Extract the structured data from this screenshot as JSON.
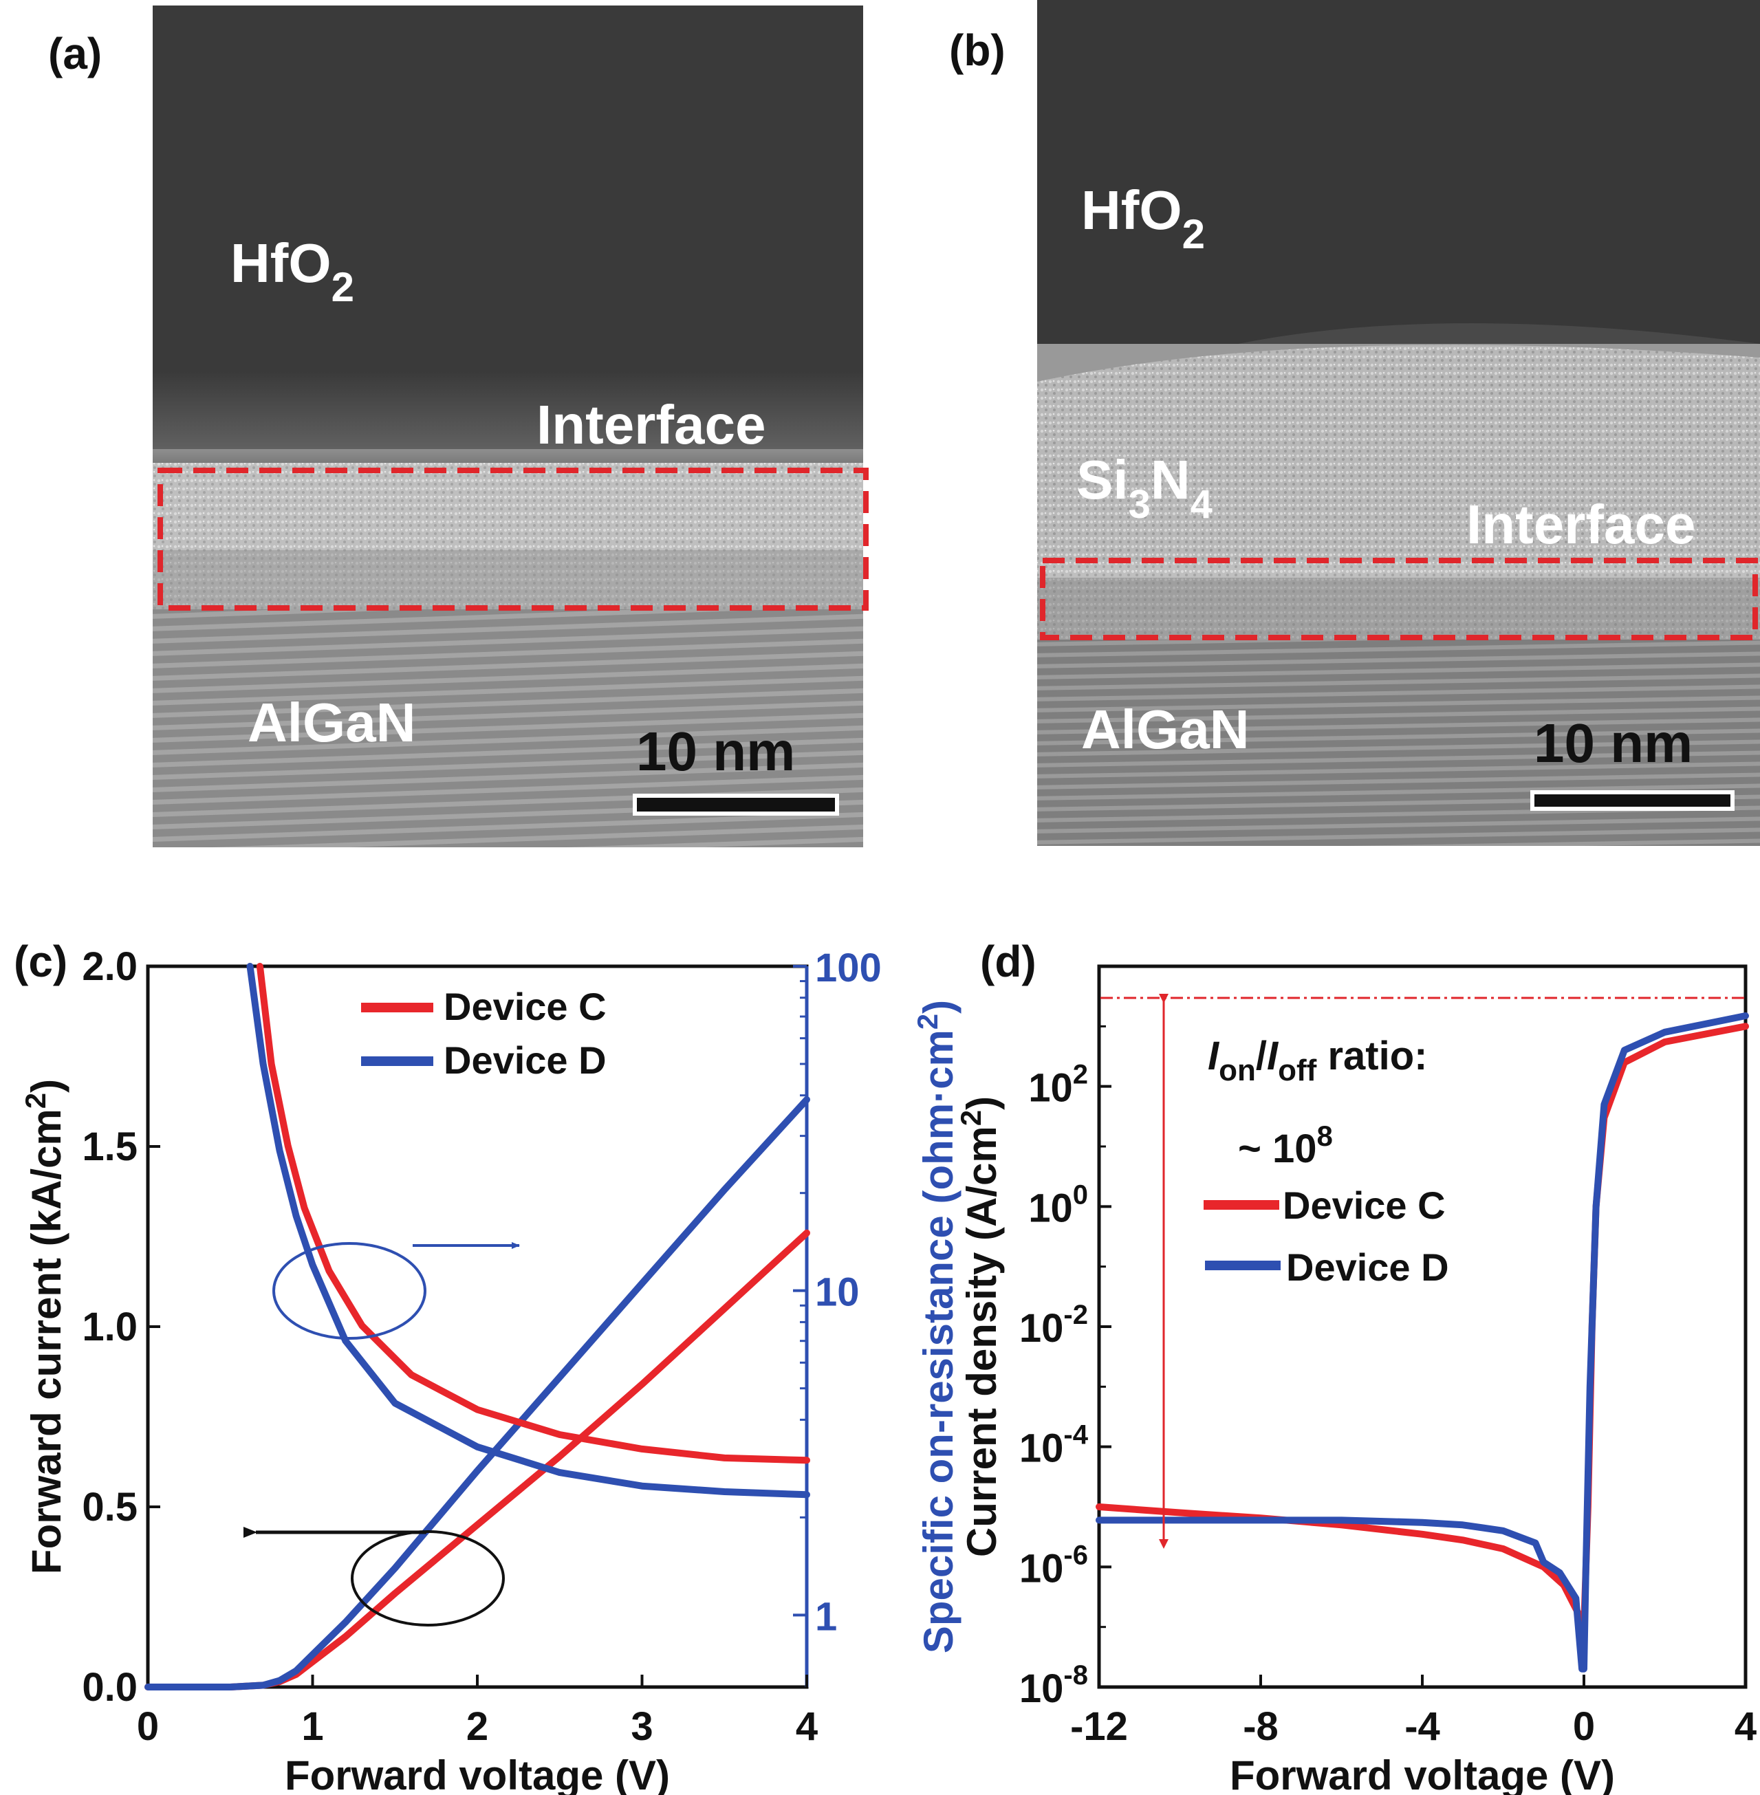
{
  "figure": {
    "panels": {
      "a": {
        "label": "(a)",
        "layers": {
          "top_base": "HfO",
          "top_sub": "2",
          "interface": "Interface",
          "bottom": "AlGaN"
        },
        "scale_bar": "10 nm"
      },
      "b": {
        "label": "(b)",
        "layers": {
          "top_base": "HfO",
          "top_sub": "2",
          "mid_si": "Si",
          "mid_3": "3",
          "mid_n": "N",
          "mid_4": "4",
          "interface": "Interface",
          "bottom": "AlGaN"
        },
        "scale_bar": "10 nm"
      },
      "c": {
        "label": "(c)"
      },
      "d": {
        "label": "(d)"
      }
    },
    "colors": {
      "red": "#e8262b",
      "blue": "#2e4fb1",
      "dashed_box": "#e0262b",
      "black": "#111111"
    }
  },
  "chart_data": [
    {
      "panel": "c",
      "type": "line",
      "xlabel": "Forward voltage (V)",
      "ylabel": "Forward current (kA/cm2)",
      "ylabel_parts": {
        "base": "Forward current (kA/cm",
        "sup": "2",
        "end": ")"
      },
      "y2label_parts": {
        "base": "Specific on-resistance (ohm·cm",
        "sup": "2",
        "end": ")"
      },
      "xlim": [
        0,
        4
      ],
      "ylim": [
        0,
        2.0
      ],
      "y2lim": [
        0.6,
        100
      ],
      "y2scale": "log",
      "x_ticks": [
        "0",
        "1",
        "2",
        "3",
        "4"
      ],
      "x_tick_values": [
        0,
        1,
        2,
        3,
        4
      ],
      "y_ticks": [
        "0.0",
        "0.5",
        "1.0",
        "1.5",
        "2.0"
      ],
      "y_tick_values": [
        0,
        0.5,
        1.0,
        1.5,
        2.0
      ],
      "y2_ticks": [
        "1",
        "10",
        "100"
      ],
      "y2_tick_values": [
        1,
        10,
        100
      ],
      "legend": [
        "Device C",
        "Device D"
      ],
      "legend_position": "top-right",
      "series": [
        {
          "name": "Device C",
          "axis": "left",
          "color": "#e8262b",
          "x": [
            0,
            0.5,
            0.7,
            0.8,
            0.9,
            1.0,
            1.2,
            1.5,
            2.0,
            2.5,
            3.0,
            3.5,
            4.0
          ],
          "y": [
            0,
            0,
            0.005,
            0.015,
            0.035,
            0.07,
            0.14,
            0.26,
            0.45,
            0.64,
            0.84,
            1.05,
            1.26
          ]
        },
        {
          "name": "Device D",
          "axis": "left",
          "color": "#2e4fb1",
          "x": [
            0,
            0.5,
            0.7,
            0.8,
            0.9,
            1.0,
            1.2,
            1.5,
            2.0,
            2.5,
            3.0,
            3.5,
            4.0
          ],
          "y": [
            0,
            0,
            0.005,
            0.018,
            0.045,
            0.09,
            0.18,
            0.33,
            0.6,
            0.86,
            1.12,
            1.38,
            1.63
          ]
        },
        {
          "name": "Device C",
          "axis": "right",
          "color": "#e8262b",
          "x": [
            0.68,
            0.75,
            0.85,
            0.95,
            1.1,
            1.3,
            1.6,
            2.0,
            2.5,
            3.0,
            3.5,
            4.0
          ],
          "y": [
            100,
            50,
            28,
            18,
            11.5,
            7.8,
            5.5,
            4.3,
            3.6,
            3.25,
            3.05,
            3.0
          ]
        },
        {
          "name": "Device D",
          "axis": "right",
          "color": "#2e4fb1",
          "x": [
            0.62,
            0.7,
            0.8,
            0.9,
            1.0,
            1.2,
            1.5,
            2.0,
            2.5,
            3.0,
            3.5,
            4.0
          ],
          "y": [
            100,
            50,
            27,
            17,
            12,
            7.0,
            4.5,
            3.3,
            2.75,
            2.5,
            2.4,
            2.35
          ]
        }
      ]
    },
    {
      "panel": "d",
      "type": "line",
      "xlabel": "Forward voltage (V)",
      "ylabel": "Current density (A/cm2)",
      "ylabel_parts": {
        "base": "Current density (A/cm",
        "sup": "2",
        "end": ")"
      },
      "yscale": "log",
      "xlim": [
        -12,
        4
      ],
      "ylim": [
        1e-08,
        10000.0
      ],
      "x_ticks": [
        "-12",
        "-8",
        "-4",
        "0",
        "4"
      ],
      "x_tick_values": [
        -12,
        -8,
        -4,
        0,
        4
      ],
      "y_tick_exponents": [
        "-8",
        "-6",
        "-4",
        "-2",
        "0",
        "2"
      ],
      "y_tick_base": "10",
      "annotation": {
        "i": "I",
        "on": "on",
        "slash": "/",
        "off": "off",
        "ratio": " ratio:",
        "approx": "~ 10",
        "approx_sup": "8"
      },
      "legend": [
        "Device C",
        "Device D"
      ],
      "legend_position": "top-left",
      "series": [
        {
          "name": "Device C",
          "color": "#e8262b",
          "x": [
            -12,
            -10,
            -8,
            -6,
            -4,
            -3,
            -2,
            -1,
            -0.5,
            -0.1,
            0,
            0.1,
            0.2,
            0.3,
            0.5,
            1,
            2,
            4
          ],
          "y": [
            1e-05,
            8e-06,
            6.5e-06,
            5e-06,
            3.5e-06,
            2.8e-06,
            2e-06,
            1e-06,
            5e-07,
            1.5e-07,
            1e-07,
            1e-05,
            0.01,
            1,
            30,
            250,
            550,
            1000
          ]
        },
        {
          "name": "Device D",
          "color": "#2e4fb1",
          "x": [
            -12,
            -10,
            -8,
            -6,
            -4,
            -3,
            -2,
            -1.2,
            -1,
            -0.6,
            -0.2,
            -0.05,
            0,
            0.05,
            0.15,
            0.3,
            0.5,
            1,
            2,
            4
          ],
          "y": [
            6e-06,
            6e-06,
            6e-06,
            6e-06,
            5.5e-06,
            5e-06,
            4e-06,
            2.5e-06,
            1.2e-06,
            8e-07,
            3e-07,
            2e-08,
            2e-08,
            1e-06,
            0.001,
            1,
            50,
            400,
            800,
            1500
          ]
        }
      ]
    }
  ]
}
